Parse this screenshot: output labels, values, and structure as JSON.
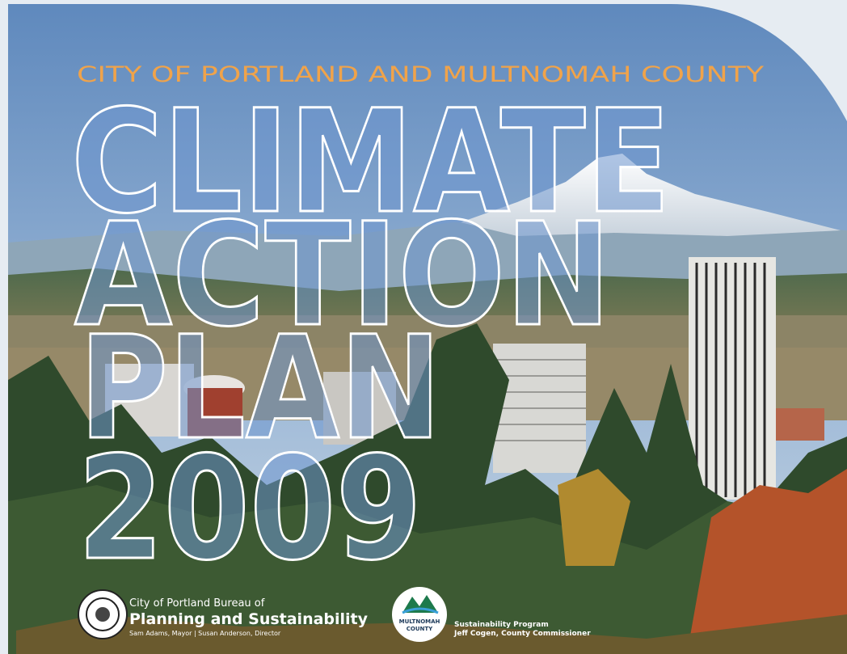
{
  "cover": {
    "agency_line": "CITY OF PORTLAND AND MULTNOMAH COUNTY",
    "title_lines": [
      "CLIMATE",
      "ACTION",
      "PLAN",
      "2009"
    ],
    "footer": {
      "city_bureau": {
        "line1": "City of Portland Bureau of",
        "line2": "Planning and Sustainability",
        "line3": "Sam Adams, Mayor | Susan Anderson, Director"
      },
      "county_logo": {
        "line1": "MULTNOMAH",
        "line2": "COUNTY"
      },
      "county_program": {
        "line1": "Sustainability Program",
        "line2": "Jeff Cogen, County Commissioner"
      }
    }
  }
}
